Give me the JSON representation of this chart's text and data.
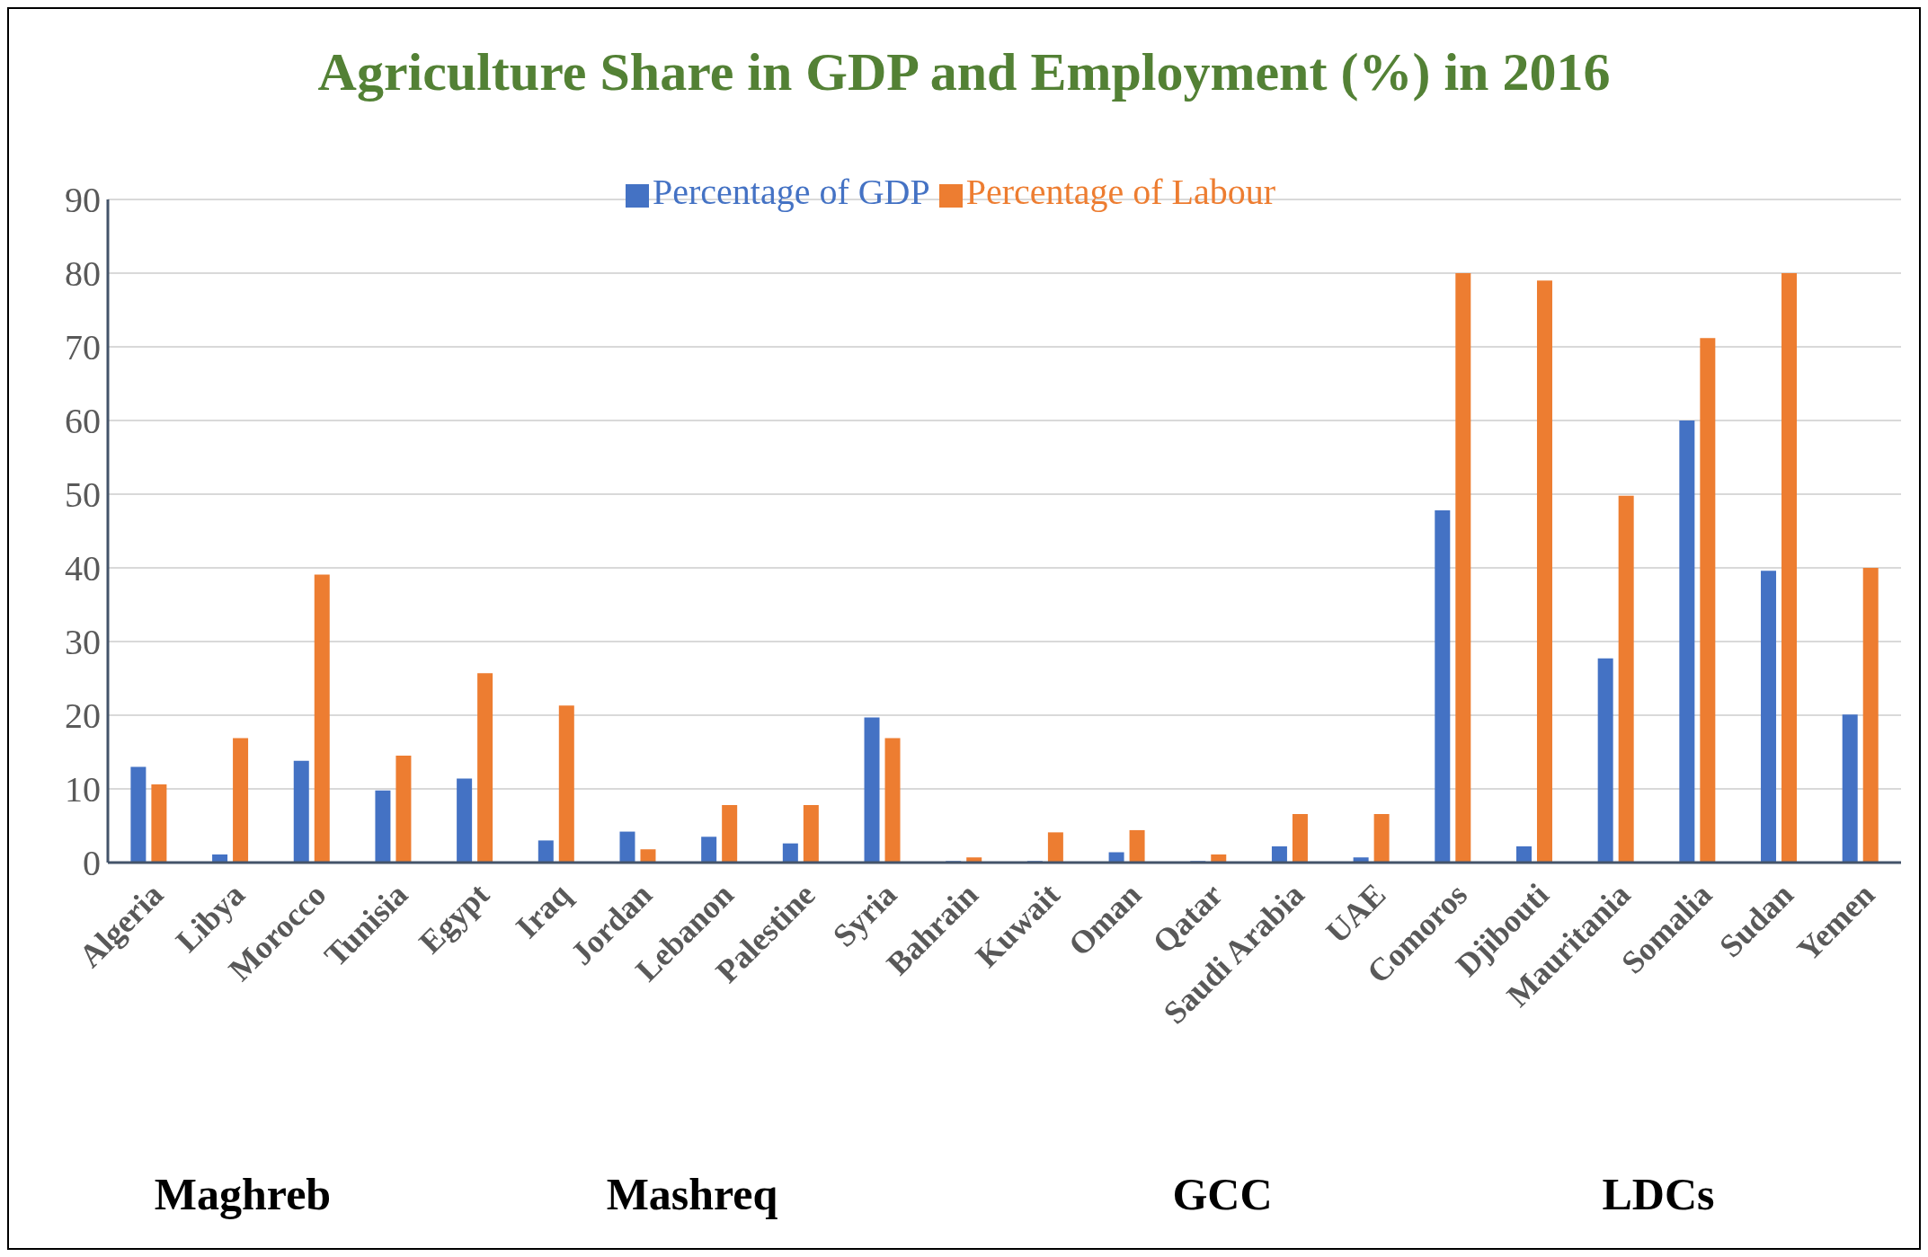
{
  "chart_data": {
    "type": "bar",
    "title": "Agriculture Share in GDP and Employment (%) in 2016",
    "categories": [
      "Algeria",
      "Libya",
      "Morocco",
      "Tunisia",
      "Egypt",
      "Iraq",
      "Jordan",
      "Lebanon",
      "Palestine",
      "Syria",
      "Bahrain",
      "Kuwait",
      "Oman",
      "Qatar",
      "Saudi Arabia",
      "UAE",
      "Comoros",
      "Djibouti",
      "Mauritania",
      "Somalia",
      "Sudan",
      "Yemen"
    ],
    "series": [
      {
        "name": "Percentage of GDP",
        "color": "#4472c4",
        "values": [
          13,
          1.1,
          13.8,
          9.8,
          11.4,
          3,
          4.2,
          3.5,
          2.6,
          19.7,
          0.2,
          0.2,
          1.4,
          0.2,
          2.2,
          0.7,
          47.8,
          2.2,
          27.7,
          60,
          39.6,
          20.1
        ]
      },
      {
        "name": "Percentage of Labour",
        "color": "#ed7d31",
        "values": [
          10.6,
          16.9,
          39.1,
          14.5,
          25.7,
          21.3,
          1.8,
          7.8,
          7.8,
          16.9,
          0.7,
          4.1,
          4.4,
          1.1,
          6.6,
          6.6,
          80,
          79,
          49.8,
          71.2,
          80,
          40
        ]
      }
    ],
    "ylim": [
      0,
      90
    ],
    "yticks": [
      0,
      10,
      20,
      30,
      40,
      50,
      60,
      70,
      80,
      90
    ],
    "grid": "y",
    "legend": "top",
    "annotations": [
      "Maghreb",
      "Mashreq",
      "GCC",
      "LDCs"
    ]
  }
}
